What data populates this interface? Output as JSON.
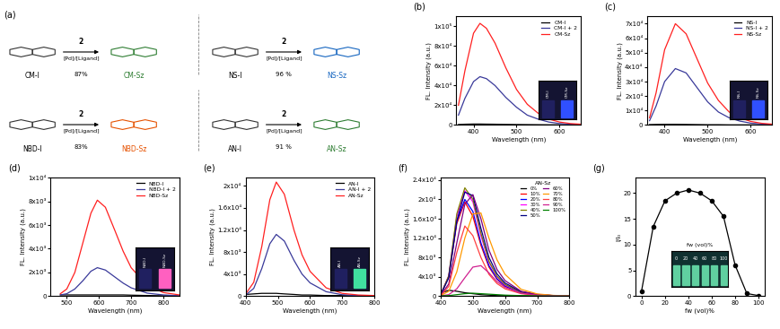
{
  "scheme": {
    "panel": "(a)",
    "reactions": [
      {
        "reactant": "CM-I",
        "reagent": "2",
        "conditions": "[Pd]/[Ligand]",
        "yield": "87%",
        "product": "CM-Sz"
      },
      {
        "reactant": "NS-I",
        "reagent": "2",
        "conditions": "[Pd]/[Ligand]",
        "yield": "96 %",
        "product": "NS-Sz"
      },
      {
        "reactant": "NBD-I",
        "reagent": "2",
        "conditions": "[Pd]/[Ligand]",
        "yield": "83%",
        "product": "NBD-Sz"
      },
      {
        "reactant": "AN-I",
        "reagent": "2",
        "conditions": "[Pd]/[Ligand]",
        "yield": "91 %",
        "product": "AN-Sz"
      }
    ]
  },
  "chart_data": [
    {
      "panel": "(b)",
      "type": "line",
      "xlabel": "Wavelength (nm)",
      "ylabel": "FL. Intensity (a.u.)",
      "x": [
        365,
        380,
        400,
        415,
        430,
        450,
        475,
        500,
        525,
        550,
        575,
        600,
        625,
        650
      ],
      "series": [
        {
          "name": "CM-I",
          "color": "#000000",
          "line_style": "solid",
          "values": [
            500,
            800,
            1000,
            1000,
            900,
            800,
            600,
            500,
            400,
            300,
            200,
            200,
            100,
            100
          ]
        },
        {
          "name": "CM-I + 2",
          "color": "#3a3a9a",
          "line_style": "solid",
          "values": [
            10000,
            27000,
            44000,
            49000,
            47000,
            40000,
            28000,
            18000,
            10000,
            6000,
            3000,
            1500,
            800,
            400
          ]
        },
        {
          "name": "CM-Sz",
          "color": "#ff2020",
          "line_style": "solid",
          "values": [
            20000,
            55000,
            93000,
            103000,
            98000,
            83000,
            58000,
            36000,
            21000,
            12000,
            6000,
            3000,
            1500,
            800
          ]
        }
      ],
      "xlim": [
        360,
        650
      ],
      "xticks": [
        400,
        500,
        600
      ],
      "ylim": [
        0,
        110000
      ],
      "yticks": [
        0,
        {
          "value": 20000,
          "label": "2x10⁴"
        },
        {
          "value": 40000,
          "label": "4x10⁴"
        },
        {
          "value": 60000,
          "label": "6x10⁴"
        },
        {
          "value": 80000,
          "label": "8x10⁴"
        },
        {
          "value": 100000,
          "label": "1x10⁵"
        }
      ],
      "legend": "upper right",
      "inset_labels": [
        "CM-I",
        "CM-Sz"
      ]
    },
    {
      "panel": "(c)",
      "type": "line",
      "xlabel": "Wavelength (nm)",
      "ylabel": "FL. Intensity (a.u.)",
      "x": [
        365,
        380,
        400,
        425,
        450,
        475,
        500,
        525,
        550,
        575,
        600,
        625,
        650
      ],
      "series": [
        {
          "name": "NS-I",
          "color": "#000000",
          "line_style": "solid",
          "values": [
            300,
            400,
            500,
            500,
            400,
            300,
            200,
            200,
            100,
            100,
            100,
            100,
            100
          ]
        },
        {
          "name": "NS-I + 2",
          "color": "#3a3a9a",
          "line_style": "solid",
          "values": [
            3000,
            13000,
            30000,
            39000,
            36000,
            26000,
            16000,
            9000,
            5000,
            2700,
            1300,
            700,
            300
          ]
        },
        {
          "name": "NS-Sz",
          "color": "#ff2020",
          "line_style": "solid",
          "values": [
            5000,
            22000,
            52000,
            70000,
            63000,
            46000,
            29000,
            17000,
            9000,
            5000,
            2500,
            1200,
            600
          ]
        }
      ],
      "xlim": [
        360,
        650
      ],
      "xticks": [
        400,
        500,
        600
      ],
      "ylim": [
        0,
        75000
      ],
      "yticks": [
        0,
        {
          "value": 10000,
          "label": "1x10⁴"
        },
        {
          "value": 20000,
          "label": "2x10⁴"
        },
        {
          "value": 30000,
          "label": "3x10⁴"
        },
        {
          "value": 40000,
          "label": "4x10⁴"
        },
        {
          "value": 50000,
          "label": "5x10⁴"
        },
        {
          "value": 60000,
          "label": "6x10⁴"
        },
        {
          "value": 70000,
          "label": "7x10⁴"
        }
      ],
      "legend": "upper right",
      "inset_labels": [
        "NS-I",
        "NS-Sz"
      ]
    },
    {
      "panel": "(d)",
      "type": "line",
      "xlabel": "Wavelength (nm)",
      "ylabel": "FL. Intensity (a.u.)",
      "x": [
        480,
        500,
        525,
        550,
        575,
        595,
        620,
        650,
        675,
        700,
        750,
        800,
        850
      ],
      "series": [
        {
          "name": "NBD-I",
          "color": "#000000",
          "line_style": "solid",
          "values": [
            100,
            100,
            100,
            100,
            100,
            100,
            100,
            100,
            100,
            80,
            50,
            30,
            20
          ]
        },
        {
          "name": "NBD-I + 2",
          "color": "#3a3a9a",
          "line_style": "solid",
          "values": [
            100,
            200,
            600,
            1300,
            2100,
            2400,
            2200,
            1600,
            1100,
            700,
            250,
            100,
            30
          ]
        },
        {
          "name": "NBD-Sz",
          "color": "#ff2020",
          "line_style": "solid",
          "values": [
            200,
            600,
            2000,
            4500,
            7000,
            8100,
            7500,
            5500,
            3800,
            2400,
            900,
            300,
            100
          ]
        }
      ],
      "xlim": [
        450,
        850
      ],
      "xticks": [
        500,
        600,
        700,
        800
      ],
      "ylim": [
        0,
        10000
      ],
      "yticks": [
        0,
        {
          "value": 2000,
          "label": "2x10³"
        },
        {
          "value": 4000,
          "label": "4x10³"
        },
        {
          "value": 6000,
          "label": "6x10³"
        },
        {
          "value": 8000,
          "label": "8x10³"
        },
        {
          "value": 10000,
          "label": "1x10⁴"
        }
      ],
      "legend": "upper right",
      "inset_labels": [
        "NBD-I",
        "NBD-Sz"
      ]
    },
    {
      "panel": "(e)",
      "type": "line",
      "xlabel": "Wavelength (nm)",
      "ylabel": "FL. Intensity (a.u.)",
      "x": [
        400,
        425,
        450,
        475,
        495,
        520,
        550,
        575,
        600,
        650,
        700,
        750,
        800
      ],
      "series": [
        {
          "name": "AN-I",
          "color": "#000000",
          "line_style": "solid",
          "values": [
            300,
            400,
            500,
            500,
            500,
            400,
            300,
            200,
            200,
            100,
            100,
            50,
            50
          ]
        },
        {
          "name": "AN-I + 2",
          "color": "#3a3a9a",
          "line_style": "solid",
          "values": [
            200,
            1400,
            5000,
            9500,
            11200,
            10000,
            6500,
            4000,
            2400,
            800,
            250,
            100,
            50
          ]
        },
        {
          "name": "AN-Sz",
          "color": "#ff2020",
          "line_style": "solid",
          "values": [
            400,
            2500,
            9000,
            17500,
            20700,
            18500,
            12000,
            7500,
            4500,
            1500,
            500,
            200,
            100
          ]
        }
      ],
      "xlim": [
        400,
        800
      ],
      "xticks": [
        400,
        500,
        600,
        700,
        800
      ],
      "ylim": [
        0,
        21500
      ],
      "yticks": [
        0,
        {
          "value": 4000,
          "label": "4x10³"
        },
        {
          "value": 8000,
          "label": "8x10³"
        },
        {
          "value": 12000,
          "label": "1.2x10⁴"
        },
        {
          "value": 16000,
          "label": "1.6x10⁴"
        },
        {
          "value": 20000,
          "label": "2x10⁴"
        }
      ],
      "legend": "upper right",
      "inset_labels": [
        "AN-I",
        "AN-Sz"
      ]
    },
    {
      "panel": "(f)",
      "type": "line",
      "xlabel": "Wavelength (nm)",
      "ylabel": "FL. Intensity (a.u.)",
      "x": [
        400,
        425,
        450,
        475,
        500,
        525,
        550,
        575,
        600,
        650,
        700,
        750,
        800
      ],
      "series": [
        {
          "name": "0%",
          "color": "#000000",
          "line_style": "solid",
          "values": [
            600,
            1200,
            1000,
            700,
            500,
            300,
            200,
            100,
            80,
            40,
            20,
            10,
            0
          ]
        },
        {
          "name": "10%",
          "color": "#ff0000",
          "line_style": "solid",
          "values": [
            300,
            4000,
            15000,
            19500,
            16500,
            10500,
            6000,
            3500,
            2000,
            700,
            250,
            100,
            50
          ]
        },
        {
          "name": "20%",
          "color": "#0000ff",
          "line_style": "solid",
          "values": [
            300,
            4000,
            15500,
            20000,
            17500,
            11000,
            6300,
            3600,
            2100,
            700,
            250,
            100,
            50
          ]
        },
        {
          "name": "30%",
          "color": "#ff00ff",
          "line_style": "solid",
          "values": [
            300,
            4200,
            16500,
            21800,
            19500,
            12500,
            7000,
            4000,
            2300,
            800,
            300,
            100,
            50
          ]
        },
        {
          "name": "40%",
          "color": "#808000",
          "line_style": "solid",
          "values": [
            300,
            4200,
            17000,
            22400,
            20000,
            13000,
            7200,
            4100,
            2400,
            800,
            300,
            100,
            50
          ]
        },
        {
          "name": "50%",
          "color": "#000080",
          "line_style": "solid",
          "values": [
            300,
            3800,
            15500,
            21500,
            20800,
            14000,
            8000,
            4600,
            2700,
            900,
            300,
            100,
            50
          ]
        },
        {
          "name": "60%",
          "color": "#800080",
          "line_style": "solid",
          "values": [
            200,
            2500,
            11000,
            19000,
            21000,
            16000,
            9500,
            5500,
            3200,
            1000,
            350,
            120,
            50
          ]
        },
        {
          "name": "70%",
          "color": "#ff9900",
          "line_style": "solid",
          "values": [
            100,
            1000,
            5000,
            12000,
            17000,
            17200,
            12000,
            7500,
            4500,
            1400,
            450,
            150,
            50
          ]
        },
        {
          "name": "80%",
          "color": "#ff4040",
          "line_style": "solid",
          "values": [
            100,
            2000,
            9000,
            14500,
            12500,
            8000,
            4500,
            2600,
            1500,
            500,
            150,
            60,
            30
          ]
        },
        {
          "name": "90%",
          "color": "#d02090",
          "line_style": "solid",
          "values": [
            50,
            300,
            1500,
            3800,
            6000,
            6300,
            4800,
            3000,
            1800,
            600,
            200,
            80,
            30
          ]
        },
        {
          "name": "100%",
          "color": "#008000",
          "line_style": "solid",
          "values": [
            50,
            100,
            300,
            500,
            600,
            500,
            400,
            300,
            200,
            100,
            50,
            20,
            10
          ]
        }
      ],
      "xlim": [
        400,
        800
      ],
      "xticks": [
        400,
        500,
        600,
        700,
        800
      ],
      "ylim": [
        0,
        24500
      ],
      "yticks": [
        0,
        {
          "value": 4000,
          "label": "4x10³"
        },
        {
          "value": 8000,
          "label": "8x10³"
        },
        {
          "value": 12000,
          "label": "1.2x10⁴"
        },
        {
          "value": 16000,
          "label": "1.6x10⁴"
        },
        {
          "value": 20000,
          "label": "2x10⁴"
        },
        {
          "value": 24000,
          "label": "2.4x10⁴"
        }
      ],
      "legend": "upper right",
      "legend_title": "AN-Sz"
    },
    {
      "panel": "(g)",
      "type": "line",
      "xlabel": "fw (vol)%",
      "ylabel": "I/I₀",
      "x": [
        0,
        10,
        20,
        30,
        40,
        50,
        60,
        70,
        80,
        90,
        100
      ],
      "series": [
        {
          "color": "#000000",
          "marker": "o",
          "line_style": "solid",
          "values": [
            1,
            13.5,
            18.5,
            20,
            20.6,
            20,
            18.5,
            15.5,
            6,
            0.5,
            0.1
          ]
        }
      ],
      "xlim": [
        -5,
        105
      ],
      "xticks": [
        0,
        20,
        40,
        60,
        80,
        100
      ],
      "ylim": [
        0,
        23
      ],
      "yticks": [
        0,
        5,
        10,
        15,
        20
      ],
      "inset_title": "fw (vol)%",
      "inset_labels": [
        0,
        20,
        40,
        60,
        80,
        100
      ]
    }
  ]
}
